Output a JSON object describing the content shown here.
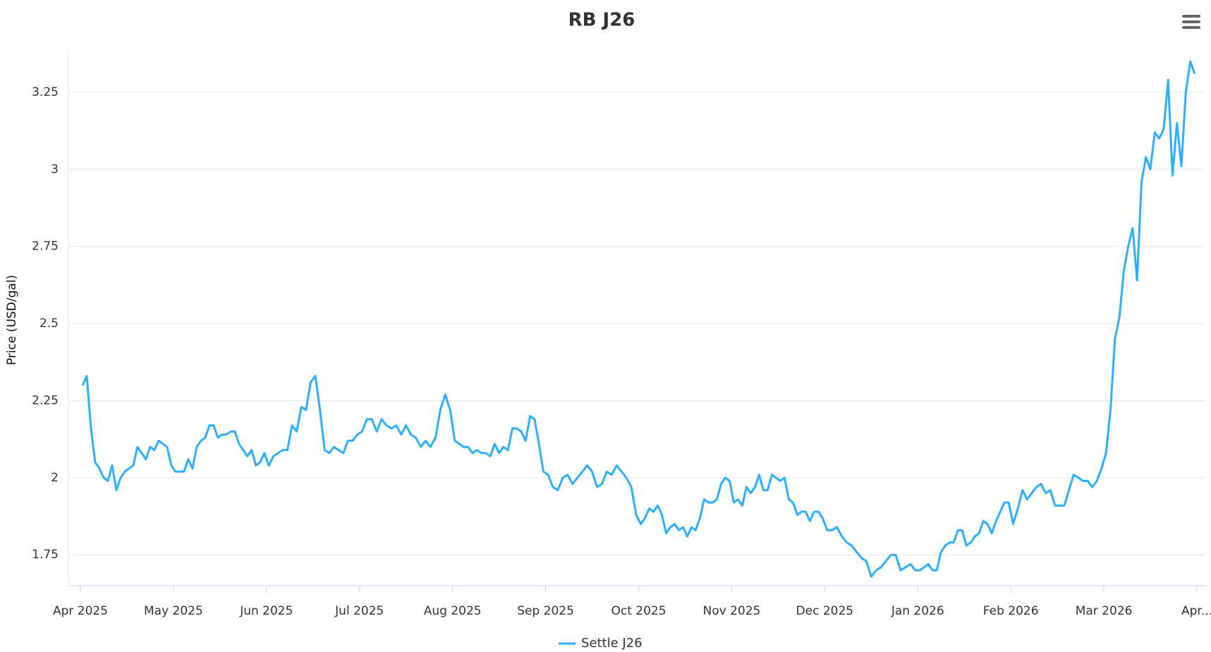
{
  "chart_data": {
    "type": "line",
    "title": "RB J26",
    "y_label": "Price (USD/gal)",
    "x": [
      "2025-04",
      "2025-04",
      "2025-04",
      "2025-04",
      "2025-04",
      "2025-04",
      "2025-04",
      "2025-04",
      "2025-04",
      "2025-04",
      "2025-04",
      "2025-04",
      "2025-04",
      "2025-04",
      "2025-04",
      "2025-04",
      "2025-04",
      "2025-04",
      "2025-04",
      "2025-04",
      "2025-04",
      "2025-04",
      "2025-05",
      "2025-05",
      "2025-05",
      "2025-05",
      "2025-05",
      "2025-05",
      "2025-05",
      "2025-05",
      "2025-05",
      "2025-05",
      "2025-05",
      "2025-05",
      "2025-05",
      "2025-05",
      "2025-05",
      "2025-05",
      "2025-05",
      "2025-05",
      "2025-05",
      "2025-05",
      "2025-05",
      "2025-05",
      "2025-06",
      "2025-06",
      "2025-06",
      "2025-06",
      "2025-06",
      "2025-06",
      "2025-06",
      "2025-06",
      "2025-06",
      "2025-06",
      "2025-06",
      "2025-06",
      "2025-06",
      "2025-06",
      "2025-06",
      "2025-06",
      "2025-06",
      "2025-06",
      "2025-06",
      "2025-06",
      "2025-07",
      "2025-07",
      "2025-07",
      "2025-07",
      "2025-07",
      "2025-07",
      "2025-07",
      "2025-07",
      "2025-07",
      "2025-07",
      "2025-07",
      "2025-07",
      "2025-07",
      "2025-07",
      "2025-07",
      "2025-07",
      "2025-07",
      "2025-07",
      "2025-07",
      "2025-08",
      "2025-08",
      "2025-08",
      "2025-08",
      "2025-08",
      "2025-08",
      "2025-08",
      "2025-08",
      "2025-08",
      "2025-08",
      "2025-08",
      "2025-08",
      "2025-08",
      "2025-08",
      "2025-08",
      "2025-08",
      "2025-08",
      "2025-08",
      "2025-08",
      "2025-08",
      "2025-08",
      "2025-09",
      "2025-09",
      "2025-09",
      "2025-09",
      "2025-09",
      "2025-09",
      "2025-09",
      "2025-09",
      "2025-09",
      "2025-09",
      "2025-09",
      "2025-09",
      "2025-09",
      "2025-09",
      "2025-09",
      "2025-09",
      "2025-09",
      "2025-09",
      "2025-09",
      "2025-10",
      "2025-10",
      "2025-10",
      "2025-10",
      "2025-10",
      "2025-10",
      "2025-10",
      "2025-10",
      "2025-10",
      "2025-10",
      "2025-10",
      "2025-10",
      "2025-10",
      "2025-10",
      "2025-10",
      "2025-10",
      "2025-10",
      "2025-10",
      "2025-10",
      "2025-10",
      "2025-10",
      "2025-10",
      "2025-11",
      "2025-11",
      "2025-11",
      "2025-11",
      "2025-11",
      "2025-11",
      "2025-11",
      "2025-11",
      "2025-11",
      "2025-11",
      "2025-11",
      "2025-11",
      "2025-11",
      "2025-11",
      "2025-11",
      "2025-11",
      "2025-11",
      "2025-11",
      "2025-11",
      "2025-11",
      "2025-11",
      "2025-11",
      "2025-12",
      "2025-12",
      "2025-12",
      "2025-12",
      "2025-12",
      "2025-12",
      "2025-12",
      "2025-12",
      "2025-12",
      "2025-12",
      "2025-12",
      "2025-12",
      "2025-12",
      "2025-12",
      "2025-12",
      "2025-12",
      "2025-12",
      "2025-12",
      "2025-12",
      "2026-01",
      "2026-01",
      "2026-01",
      "2026-01",
      "2026-01",
      "2026-01",
      "2026-01",
      "2026-01",
      "2026-01",
      "2026-01",
      "2026-01",
      "2026-01",
      "2026-01",
      "2026-01",
      "2026-01",
      "2026-01",
      "2026-01",
      "2026-01",
      "2026-01",
      "2026-01",
      "2026-01",
      "2026-01",
      "2026-02",
      "2026-02",
      "2026-02",
      "2026-02",
      "2026-02",
      "2026-02",
      "2026-02",
      "2026-02",
      "2026-02",
      "2026-02",
      "2026-02",
      "2026-02",
      "2026-02",
      "2026-02",
      "2026-02",
      "2026-02",
      "2026-02",
      "2026-02",
      "2026-02",
      "2026-02",
      "2026-03",
      "2026-03",
      "2026-03",
      "2026-03",
      "2026-03",
      "2026-03",
      "2026-03",
      "2026-03",
      "2026-03",
      "2026-03",
      "2026-03",
      "2026-03",
      "2026-03",
      "2026-03",
      "2026-03",
      "2026-03",
      "2026-03",
      "2026-03",
      "2026-03",
      "2026-03",
      "2026-03"
    ],
    "series": [
      {
        "name": "Settle J26",
        "color": "#2caffe",
        "values": [
          2.3,
          2.33,
          2.16,
          2.05,
          2.03,
          2.0,
          1.99,
          2.04,
          1.96,
          2.0,
          2.02,
          2.03,
          2.04,
          2.1,
          2.08,
          2.06,
          2.1,
          2.09,
          2.12,
          2.11,
          2.1,
          2.04,
          2.02,
          2.02,
          2.02,
          2.06,
          2.03,
          2.1,
          2.12,
          2.13,
          2.17,
          2.17,
          2.13,
          2.14,
          2.14,
          2.15,
          2.15,
          2.11,
          2.09,
          2.07,
          2.09,
          2.04,
          2.05,
          2.08,
          2.04,
          2.07,
          2.08,
          2.09,
          2.09,
          2.17,
          2.15,
          2.23,
          2.22,
          2.31,
          2.33,
          2.22,
          2.09,
          2.08,
          2.1,
          2.09,
          2.08,
          2.12,
          2.12,
          2.14,
          2.15,
          2.19,
          2.19,
          2.15,
          2.19,
          2.17,
          2.16,
          2.17,
          2.14,
          2.17,
          2.14,
          2.13,
          2.1,
          2.12,
          2.1,
          2.13,
          2.22,
          2.27,
          2.22,
          2.12,
          2.11,
          2.1,
          2.1,
          2.08,
          2.09,
          2.08,
          2.08,
          2.07,
          2.11,
          2.08,
          2.1,
          2.09,
          2.16,
          2.16,
          2.15,
          2.12,
          2.2,
          2.19,
          2.11,
          2.02,
          2.01,
          1.97,
          1.96,
          2.0,
          2.01,
          1.98,
          2.0,
          2.02,
          2.04,
          2.02,
          1.97,
          1.98,
          2.02,
          2.01,
          2.04,
          2.02,
          2.0,
          1.97,
          1.88,
          1.85,
          1.87,
          1.9,
          1.89,
          1.91,
          1.88,
          1.82,
          1.84,
          1.85,
          1.83,
          1.84,
          1.81,
          1.84,
          1.83,
          1.87,
          1.93,
          1.92,
          1.92,
          1.93,
          1.98,
          2.0,
          1.99,
          1.92,
          1.93,
          1.91,
          1.97,
          1.95,
          1.97,
          2.01,
          1.96,
          1.96,
          2.01,
          2.0,
          1.99,
          2.0,
          1.93,
          1.92,
          1.88,
          1.89,
          1.89,
          1.86,
          1.89,
          1.89,
          1.87,
          1.83,
          1.83,
          1.84,
          1.81,
          1.79,
          1.78,
          1.76,
          1.74,
          1.73,
          1.68,
          1.7,
          1.71,
          1.73,
          1.75,
          1.75,
          1.7,
          1.71,
          1.72,
          1.7,
          1.7,
          1.71,
          1.72,
          1.7,
          1.7,
          1.76,
          1.78,
          1.79,
          1.79,
          1.83,
          1.83,
          1.78,
          1.79,
          1.81,
          1.82,
          1.86,
          1.85,
          1.82,
          1.86,
          1.89,
          1.92,
          1.92,
          1.85,
          1.9,
          1.96,
          1.93,
          1.95,
          1.97,
          1.98,
          1.95,
          1.96,
          1.91,
          1.91,
          1.91,
          1.96,
          2.01,
          2.0,
          1.99,
          1.99,
          1.97,
          1.99,
          2.03,
          2.08,
          2.22,
          2.45,
          2.52,
          2.67,
          2.75,
          2.81,
          2.64,
          2.96,
          3.04,
          3.0,
          3.12,
          3.1,
          3.13,
          3.29,
          2.98,
          3.15,
          3.01,
          3.25,
          3.35,
          3.31
        ]
      }
    ],
    "xlim": [
      "2025-04",
      "2026-04"
    ],
    "xticks": [
      {
        "value": "2025-04",
        "label": "Apr 2025"
      },
      {
        "value": "2025-05",
        "label": "May 2025"
      },
      {
        "value": "2025-06",
        "label": "Jun 2025"
      },
      {
        "value": "2025-07",
        "label": "Jul 2025"
      },
      {
        "value": "2025-08",
        "label": "Aug 2025"
      },
      {
        "value": "2025-09",
        "label": "Sep 2025"
      },
      {
        "value": "2025-10",
        "label": "Oct 2025"
      },
      {
        "value": "2025-11",
        "label": "Nov 2025"
      },
      {
        "value": "2025-12",
        "label": "Dec 2025"
      },
      {
        "value": "2026-01",
        "label": "Jan 2026"
      },
      {
        "value": "2026-02",
        "label": "Feb 2026"
      },
      {
        "value": "2026-03",
        "label": "Mar 2026"
      },
      {
        "value": "2026-04",
        "label": "Apr..."
      }
    ],
    "ylim": [
      1.65,
      3.38
    ],
    "yticks": [
      1.75,
      2,
      2.25,
      2.5,
      2.75,
      3,
      3.25
    ],
    "grid": true,
    "legend": "bottom"
  }
}
